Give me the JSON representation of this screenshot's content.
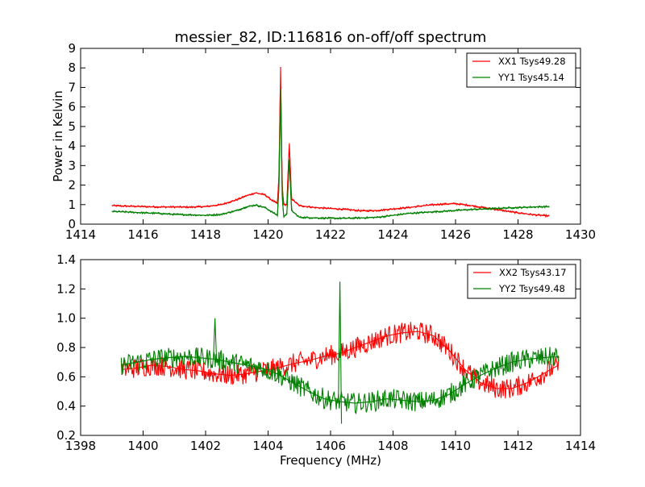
{
  "chart_data": [
    {
      "type": "line",
      "title": "messier_82, ID:116816 on-off/off spectrum",
      "xlabel": "",
      "ylabel": "Power in Kelvin",
      "xlim": [
        1414,
        1430
      ],
      "ylim": [
        0,
        9
      ],
      "x_ticks": [
        1414,
        1416,
        1418,
        1420,
        1422,
        1424,
        1426,
        1428,
        1430
      ],
      "y_ticks": [
        0,
        1,
        2,
        3,
        4,
        5,
        6,
        7,
        8,
        9
      ],
      "legend_position": "top-right",
      "grid": false,
      "series": [
        {
          "name": "XX1 Tsys49.28",
          "color": "#ff0000",
          "points": [
            [
              1415.0,
              0.95
            ],
            [
              1415.5,
              0.92
            ],
            [
              1416.0,
              0.9
            ],
            [
              1416.5,
              0.88
            ],
            [
              1417.0,
              0.88
            ],
            [
              1417.5,
              0.87
            ],
            [
              1418.0,
              0.9
            ],
            [
              1418.5,
              1.0
            ],
            [
              1419.0,
              1.25
            ],
            [
              1419.3,
              1.45
            ],
            [
              1419.6,
              1.6
            ],
            [
              1419.9,
              1.5
            ],
            [
              1420.1,
              1.25
            ],
            [
              1420.3,
              1.05
            ],
            [
              1420.35,
              2.5
            ],
            [
              1420.4,
              8.05
            ],
            [
              1420.45,
              2.0
            ],
            [
              1420.5,
              1.0
            ],
            [
              1420.6,
              1.0
            ],
            [
              1420.68,
              4.15
            ],
            [
              1420.75,
              1.3
            ],
            [
              1421.0,
              0.95
            ],
            [
              1421.5,
              0.85
            ],
            [
              1422.0,
              0.8
            ],
            [
              1422.5,
              0.75
            ],
            [
              1423.0,
              0.68
            ],
            [
              1423.5,
              0.7
            ],
            [
              1424.0,
              0.78
            ],
            [
              1424.5,
              0.85
            ],
            [
              1425.0,
              0.95
            ],
            [
              1425.5,
              1.02
            ],
            [
              1426.0,
              1.05
            ],
            [
              1426.5,
              0.95
            ],
            [
              1427.0,
              0.82
            ],
            [
              1427.5,
              0.7
            ],
            [
              1428.0,
              0.58
            ],
            [
              1428.5,
              0.48
            ],
            [
              1429.0,
              0.42
            ]
          ]
        },
        {
          "name": "YY1 Tsys45.14",
          "color": "#008000",
          "points": [
            [
              1415.0,
              0.65
            ],
            [
              1415.5,
              0.62
            ],
            [
              1416.0,
              0.58
            ],
            [
              1416.5,
              0.55
            ],
            [
              1417.0,
              0.5
            ],
            [
              1417.5,
              0.48
            ],
            [
              1418.0,
              0.45
            ],
            [
              1418.5,
              0.5
            ],
            [
              1419.0,
              0.7
            ],
            [
              1419.3,
              0.88
            ],
            [
              1419.6,
              0.98
            ],
            [
              1419.9,
              0.85
            ],
            [
              1420.1,
              0.65
            ],
            [
              1420.3,
              0.45
            ],
            [
              1420.35,
              2.0
            ],
            [
              1420.4,
              6.9
            ],
            [
              1420.45,
              1.5
            ],
            [
              1420.5,
              0.4
            ],
            [
              1420.6,
              0.5
            ],
            [
              1420.68,
              3.3
            ],
            [
              1420.75,
              0.7
            ],
            [
              1421.0,
              0.35
            ],
            [
              1421.5,
              0.32
            ],
            [
              1422.0,
              0.3
            ],
            [
              1422.5,
              0.3
            ],
            [
              1423.0,
              0.32
            ],
            [
              1423.5,
              0.35
            ],
            [
              1424.0,
              0.45
            ],
            [
              1424.5,
              0.55
            ],
            [
              1425.0,
              0.6
            ],
            [
              1425.5,
              0.65
            ],
            [
              1426.0,
              0.7
            ],
            [
              1426.5,
              0.75
            ],
            [
              1427.0,
              0.78
            ],
            [
              1427.5,
              0.82
            ],
            [
              1428.0,
              0.85
            ],
            [
              1428.5,
              0.88
            ],
            [
              1429.0,
              0.9
            ]
          ]
        }
      ]
    },
    {
      "type": "line",
      "title": "",
      "xlabel": "Frequency (MHz)",
      "ylabel": "",
      "xlim": [
        1398,
        1414
      ],
      "ylim": [
        0.2,
        1.4
      ],
      "x_ticks": [
        1398,
        1400,
        1402,
        1404,
        1406,
        1408,
        1410,
        1412,
        1414
      ],
      "y_ticks": [
        0.2,
        0.4,
        0.6,
        0.8,
        1.0,
        1.2,
        1.4
      ],
      "legend_position": "top-right",
      "grid": false,
      "series": [
        {
          "name": "XX2 Tsys43.17",
          "color": "#ff0000",
          "points": [
            [
              1399.3,
              0.65
            ],
            [
              1399.8,
              0.66
            ],
            [
              1400.3,
              0.68
            ],
            [
              1400.8,
              0.67
            ],
            [
              1401.3,
              0.65
            ],
            [
              1401.8,
              0.64
            ],
            [
              1402.3,
              0.62
            ],
            [
              1402.8,
              0.61
            ],
            [
              1403.3,
              0.62
            ],
            [
              1403.8,
              0.64
            ],
            [
              1404.3,
              0.66
            ],
            [
              1404.8,
              0.69
            ],
            [
              1405.3,
              0.71
            ],
            [
              1405.8,
              0.74
            ],
            [
              1406.3,
              0.76
            ],
            [
              1406.8,
              0.8
            ],
            [
              1407.3,
              0.84
            ],
            [
              1407.8,
              0.88
            ],
            [
              1408.3,
              0.9
            ],
            [
              1408.8,
              0.91
            ],
            [
              1409.3,
              0.88
            ],
            [
              1409.8,
              0.78
            ],
            [
              1410.3,
              0.65
            ],
            [
              1410.8,
              0.56
            ],
            [
              1411.3,
              0.52
            ],
            [
              1411.8,
              0.52
            ],
            [
              1412.3,
              0.56
            ],
            [
              1412.8,
              0.62
            ],
            [
              1413.3,
              0.68
            ]
          ]
        },
        {
          "name": "YY2 Tsys49.48",
          "color": "#008000",
          "points": [
            [
              1399.3,
              0.68
            ],
            [
              1399.8,
              0.7
            ],
            [
              1400.3,
              0.72
            ],
            [
              1400.8,
              0.73
            ],
            [
              1401.3,
              0.74
            ],
            [
              1401.8,
              0.73
            ],
            [
              1402.3,
              0.72
            ],
            [
              1402.8,
              0.7
            ],
            [
              1403.3,
              0.68
            ],
            [
              1403.8,
              0.66
            ],
            [
              1404.3,
              0.62
            ],
            [
              1404.8,
              0.56
            ],
            [
              1405.3,
              0.5
            ],
            [
              1405.8,
              0.45
            ],
            [
              1406.3,
              0.43
            ],
            [
              1406.8,
              0.42
            ],
            [
              1407.3,
              0.43
            ],
            [
              1407.8,
              0.45
            ],
            [
              1408.3,
              0.44
            ],
            [
              1408.8,
              0.43
            ],
            [
              1409.3,
              0.44
            ],
            [
              1409.8,
              0.48
            ],
            [
              1410.3,
              0.55
            ],
            [
              1410.8,
              0.61
            ],
            [
              1411.3,
              0.66
            ],
            [
              1411.8,
              0.7
            ],
            [
              1412.3,
              0.72
            ],
            [
              1412.8,
              0.73
            ],
            [
              1413.3,
              0.74
            ]
          ]
        }
      ]
    }
  ]
}
